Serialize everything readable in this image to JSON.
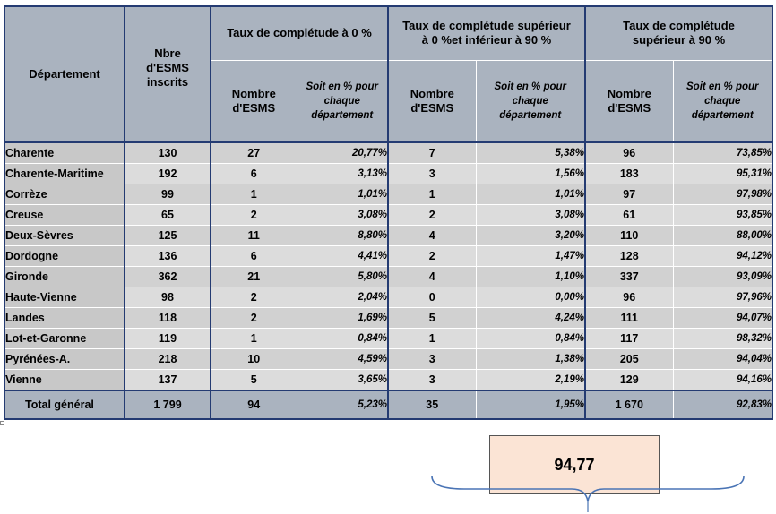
{
  "headers": {
    "departement": "Département",
    "nbre_line1": "Nbre",
    "nbre_line2": "d'ESMS",
    "nbre_line3": "inscrits",
    "group_zero": "Taux de complétude à 0 %",
    "group_mid_line1": "Taux de complétude supérieur",
    "group_mid_line2": "à 0 %et inférieur à 90 %",
    "group_high_line1": "Taux de complétude",
    "group_high_line2": "supérieur  à 90 %",
    "nombre_line1": "Nombre",
    "nombre_line2": "d'ESMS",
    "pct_line1": "Soit en % pour",
    "pct_line2": "chaque",
    "pct_line3": "département"
  },
  "rows": [
    {
      "dept": "Charente",
      "inscrits": "130",
      "n0": "27",
      "p0": "20,77%",
      "nmid": "7",
      "pmid": "5,38%",
      "nhigh": "96",
      "phigh": "73,85%"
    },
    {
      "dept": "Charente-Maritime",
      "inscrits": "192",
      "n0": "6",
      "p0": "3,13%",
      "nmid": "3",
      "pmid": "1,56%",
      "nhigh": "183",
      "phigh": "95,31%"
    },
    {
      "dept": "Corrèze",
      "inscrits": "99",
      "n0": "1",
      "p0": "1,01%",
      "nmid": "1",
      "pmid": "1,01%",
      "nhigh": "97",
      "phigh": "97,98%"
    },
    {
      "dept": "Creuse",
      "inscrits": "65",
      "n0": "2",
      "p0": "3,08%",
      "nmid": "2",
      "pmid": "3,08%",
      "nhigh": "61",
      "phigh": "93,85%"
    },
    {
      "dept": "Deux-Sèvres",
      "inscrits": "125",
      "n0": "11",
      "p0": "8,80%",
      "nmid": "4",
      "pmid": "3,20%",
      "nhigh": "110",
      "phigh": "88,00%"
    },
    {
      "dept": "Dordogne",
      "inscrits": "136",
      "n0": "6",
      "p0": "4,41%",
      "nmid": "2",
      "pmid": "1,47%",
      "nhigh": "128",
      "phigh": "94,12%"
    },
    {
      "dept": "Gironde",
      "inscrits": "362",
      "n0": "21",
      "p0": "5,80%",
      "nmid": "4",
      "pmid": "1,10%",
      "nhigh": "337",
      "phigh": "93,09%"
    },
    {
      "dept": "Haute-Vienne",
      "inscrits": "98",
      "n0": "2",
      "p0": "2,04%",
      "nmid": "0",
      "pmid": "0,00%",
      "nhigh": "96",
      "phigh": "97,96%"
    },
    {
      "dept": "Landes",
      "inscrits": "118",
      "n0": "2",
      "p0": "1,69%",
      "nmid": "5",
      "pmid": "4,24%",
      "nhigh": "111",
      "phigh": "94,07%"
    },
    {
      "dept": "Lot-et-Garonne",
      "inscrits": "119",
      "n0": "1",
      "p0": "0,84%",
      "nmid": "1",
      "pmid": "0,84%",
      "nhigh": "117",
      "phigh": "98,32%"
    },
    {
      "dept": "Pyrénées-A.",
      "inscrits": "218",
      "n0": "10",
      "p0": "4,59%",
      "nmid": "3",
      "pmid": "1,38%",
      "nhigh": "205",
      "phigh": "94,04%"
    },
    {
      "dept": "Vienne",
      "inscrits": "137",
      "n0": "5",
      "p0": "3,65%",
      "nmid": "3",
      "pmid": "2,19%",
      "nhigh": "129",
      "phigh": "94,16%"
    }
  ],
  "total": {
    "label": "Total général",
    "inscrits": "1 799",
    "n0": "94",
    "p0": "5,23%",
    "nmid": "35",
    "pmid": "1,95%",
    "nhigh": "1 670",
    "phigh": "92,83%"
  },
  "callout": {
    "value": "94,77"
  }
}
